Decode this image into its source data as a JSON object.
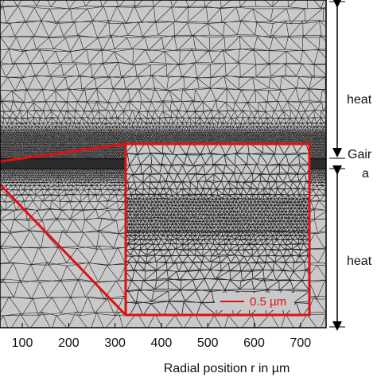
{
  "regions": [
    {
      "label": "heat"
    },
    {
      "label": "Gair",
      "sublabel": "a"
    },
    {
      "label": "heat"
    }
  ],
  "inset": {
    "scale_bar": "0.5 µm"
  },
  "axis": {
    "label": "Radial position r in µm",
    "ticks": [
      "100",
      "200",
      "300",
      "400",
      "500",
      "600",
      "700"
    ]
  }
}
